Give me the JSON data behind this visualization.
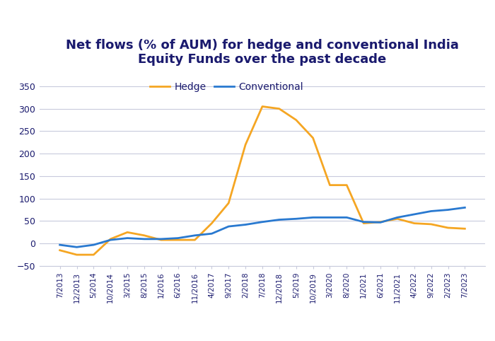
{
  "title": "Net flows (% of AUM) for hedge and conventional India\nEquity Funds over the past decade",
  "title_color": "#1a1a6e",
  "title_fontsize": 13,
  "background_color": "#ffffff",
  "grid_color": "#c8cadc",
  "tick_label_color": "#1a1a6e",
  "ylim": [
    -50,
    375
  ],
  "yticks": [
    -50,
    0,
    50,
    100,
    150,
    200,
    250,
    300,
    350
  ],
  "legend_labels": [
    "Hedge",
    "Conventional"
  ],
  "x_labels": [
    "7/2013",
    "12/2013",
    "5/2014",
    "10/2014",
    "3/2015",
    "8/2015",
    "1/2016",
    "6/2016",
    "11/2016",
    "4/2017",
    "9/2017",
    "2/2018",
    "7/2018",
    "12/2018",
    "5/2019",
    "10/2019",
    "3/2020",
    "8/2020",
    "1/2021",
    "6/2021",
    "11/2021",
    "4/2022",
    "9/2022",
    "2/2023",
    "7/2023"
  ],
  "hedge_values": [
    -15,
    -25,
    -25,
    10,
    25,
    18,
    8,
    8,
    8,
    45,
    90,
    220,
    305,
    300,
    275,
    235,
    130,
    130,
    45,
    48,
    55,
    45,
    43,
    35,
    33
  ],
  "conventional_values": [
    -3,
    -8,
    -3,
    8,
    12,
    10,
    10,
    12,
    18,
    22,
    38,
    42,
    48,
    53,
    55,
    58,
    58,
    58,
    48,
    47,
    58,
    65,
    72,
    75,
    80
  ],
  "hedge_color": "#f5a623",
  "conventional_color": "#2979d0",
  "line_width": 2.0
}
